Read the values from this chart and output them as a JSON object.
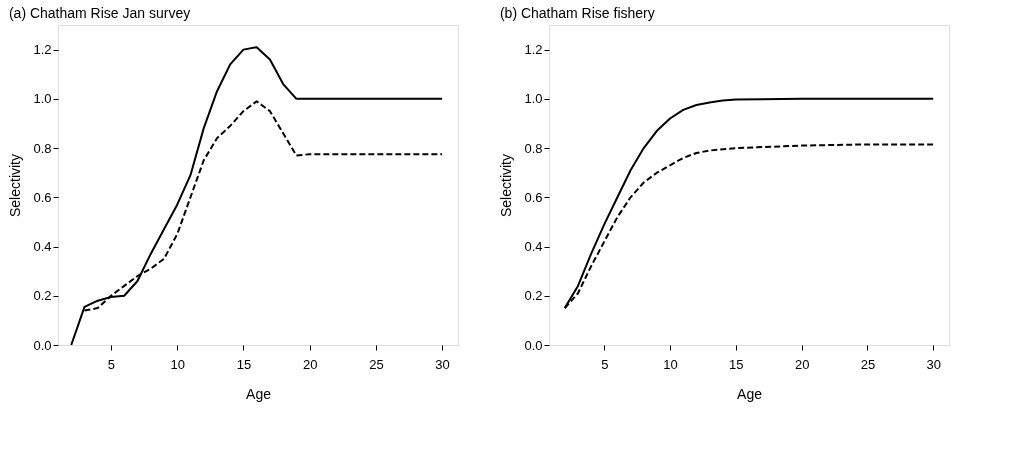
{
  "chart_data": [
    {
      "type": "line",
      "title": "(a) Chatham Rise Jan survey",
      "xlabel": "Age",
      "ylabel": "Selectivity",
      "xlim": [
        1,
        31.2
      ],
      "ylim": [
        0,
        1.3
      ],
      "xticks": [
        5,
        10,
        15,
        20,
        25,
        30
      ],
      "yticks": [
        {
          "value": 0,
          "label": "0.0"
        },
        {
          "value": 0.2,
          "label": "0.2"
        },
        {
          "value": 0.4,
          "label": "0.4"
        },
        {
          "value": 0.6,
          "label": "0.6"
        },
        {
          "value": 0.8,
          "label": "0.8"
        },
        {
          "value": 1,
          "label": "1.0"
        },
        {
          "value": 1.2,
          "label": "1.2"
        }
      ],
      "grid": false,
      "marker": "none",
      "series": [
        {
          "color": "#000000",
          "line_style": "solid",
          "x": [
            2,
            3,
            4,
            5,
            6,
            7,
            8,
            9,
            10,
            11,
            12,
            13,
            14,
            15,
            16,
            17,
            18,
            19,
            20,
            25,
            30
          ],
          "values": [
            0,
            0.155,
            0.18,
            0.195,
            0.2,
            0.26,
            0.37,
            0.47,
            0.57,
            0.69,
            0.88,
            1.03,
            1.14,
            1.2,
            1.21,
            1.16,
            1.06,
            1.0,
            1.0,
            1.0,
            1.0
          ]
        },
        {
          "color": "#000000",
          "line_style": "dashed",
          "x": [
            3,
            4,
            5,
            6,
            7,
            8,
            9,
            10,
            11,
            12,
            13,
            14,
            15,
            16,
            17,
            18,
            19,
            20,
            25,
            30
          ],
          "values": [
            0.14,
            0.15,
            0.2,
            0.24,
            0.28,
            0.31,
            0.35,
            0.45,
            0.6,
            0.75,
            0.84,
            0.89,
            0.95,
            0.99,
            0.95,
            0.86,
            0.77,
            0.775,
            0.775,
            0.775
          ]
        }
      ]
    },
    {
      "type": "line",
      "title": "(b) Chatham Rise fishery",
      "xlabel": "Age",
      "ylabel": "Selectivity",
      "xlim": [
        0.8,
        31.2
      ],
      "ylim": [
        0,
        1.3
      ],
      "xticks": [
        5,
        10,
        15,
        20,
        25,
        30
      ],
      "yticks": [
        {
          "value": 0,
          "label": "0.0"
        },
        {
          "value": 0.2,
          "label": "0.2"
        },
        {
          "value": 0.4,
          "label": "0.4"
        },
        {
          "value": 0.6,
          "label": "0.6"
        },
        {
          "value": 0.8,
          "label": "0.8"
        },
        {
          "value": 1,
          "label": "1.0"
        },
        {
          "value": 1.2,
          "label": "1.2"
        }
      ],
      "grid": false,
      "marker": "none",
      "series": [
        {
          "color": "#000000",
          "line_style": "solid",
          "x": [
            2,
            3,
            4,
            5,
            6,
            7,
            8,
            9,
            10,
            11,
            12,
            13,
            14,
            15,
            20,
            25,
            30
          ],
          "values": [
            0.15,
            0.24,
            0.37,
            0.49,
            0.6,
            0.71,
            0.8,
            0.87,
            0.92,
            0.955,
            0.975,
            0.985,
            0.993,
            0.997,
            1.0,
            1.0,
            1.0
          ]
        },
        {
          "color": "#000000",
          "line_style": "dashed",
          "x": [
            2,
            3,
            4,
            5,
            6,
            7,
            8,
            9,
            10,
            11,
            12,
            13,
            15,
            20,
            25,
            30
          ],
          "values": [
            0.15,
            0.21,
            0.32,
            0.42,
            0.52,
            0.6,
            0.66,
            0.7,
            0.73,
            0.76,
            0.78,
            0.79,
            0.8,
            0.81,
            0.815,
            0.815
          ]
        }
      ]
    }
  ]
}
